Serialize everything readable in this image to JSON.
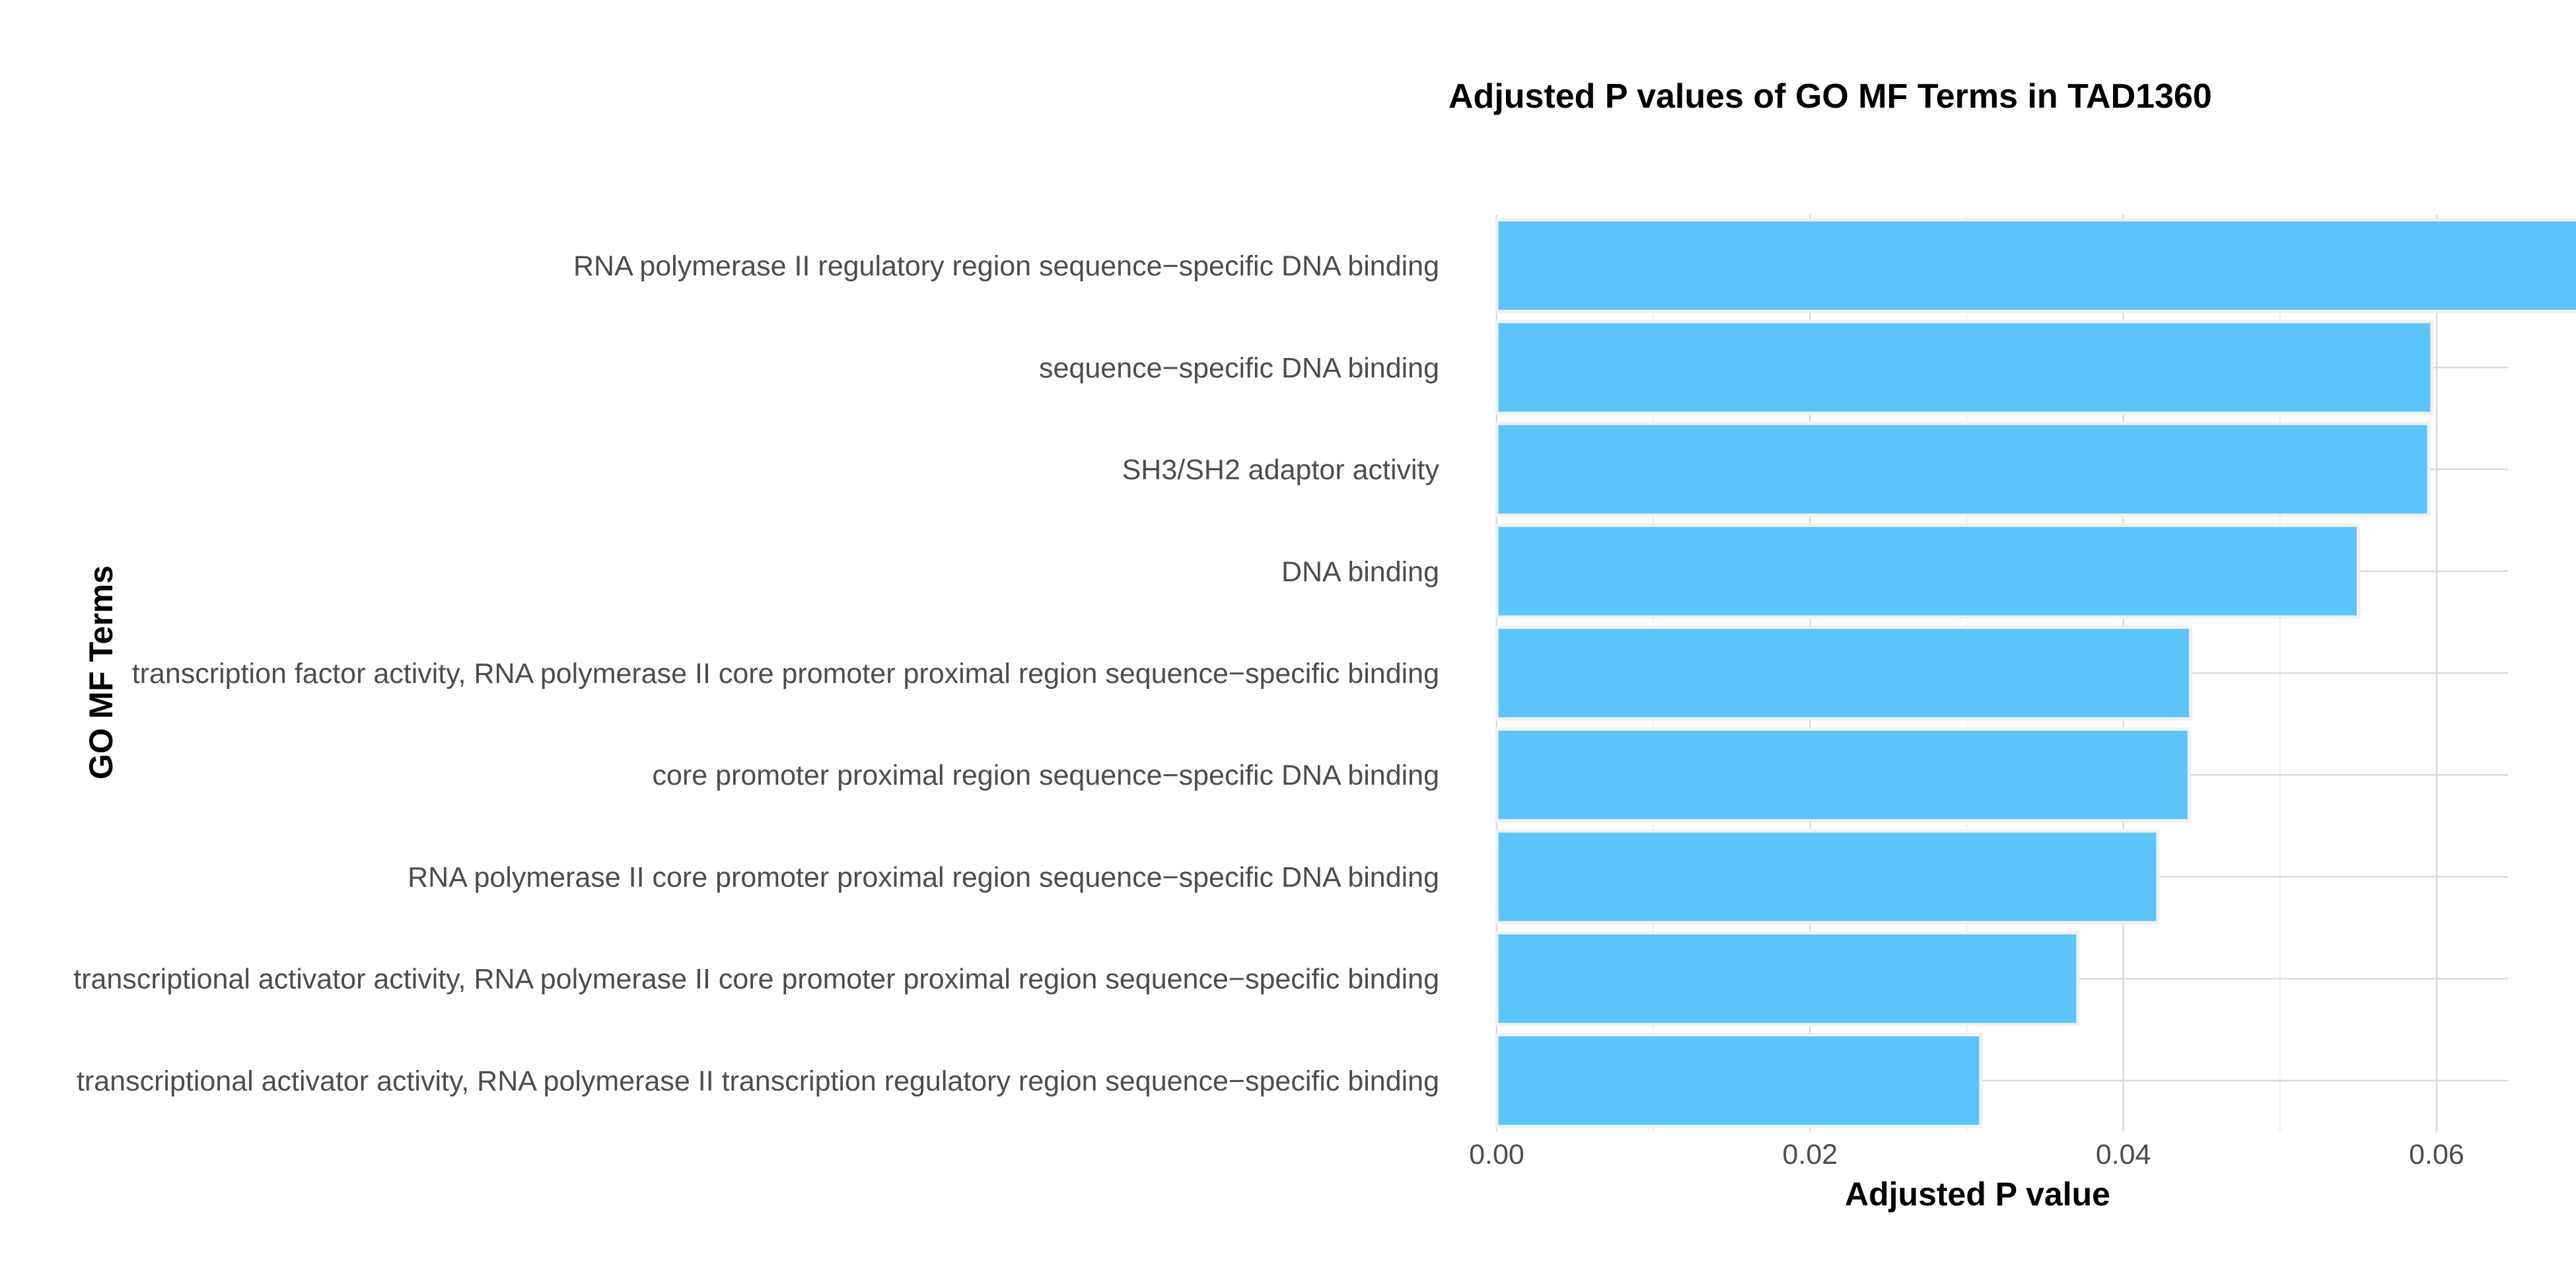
{
  "chart_data": {
    "type": "bar",
    "orientation": "horizontal",
    "title": "Adjusted P values of GO MF Terms in TAD1360",
    "xlabel": "Adjusted P value",
    "ylabel": "GO MF Terms",
    "categories": [
      "RNA polymerase II regulatory region sequence−specific DNA binding",
      "sequence−specific DNA binding",
      "SH3/SH2 adaptor activity",
      "DNA binding",
      "transcription factor activity, RNA polymerase II core promoter proximal region sequence−specific binding",
      "core promoter proximal region sequence−specific DNA binding",
      "RNA polymerase II core promoter proximal region sequence−specific DNA binding",
      "transcriptional activator activity, RNA polymerase II core promoter proximal region sequence−specific binding",
      "transcriptional activator activity, RNA polymerase II transcription regulatory region sequence−specific binding"
    ],
    "values": [
      0.0692,
      0.0597,
      0.0595,
      0.055,
      0.0443,
      0.0442,
      0.0422,
      0.0371,
      0.0309
    ],
    "xlim": [
      0,
      0.0727
    ],
    "xticks": [
      0.0,
      0.02,
      0.04,
      0.06
    ],
    "xtick_labels": [
      "0.00",
      "0.02",
      "0.04",
      "0.06"
    ],
    "grid": true,
    "legend": "none",
    "bar_color": "#5bc5fa"
  }
}
